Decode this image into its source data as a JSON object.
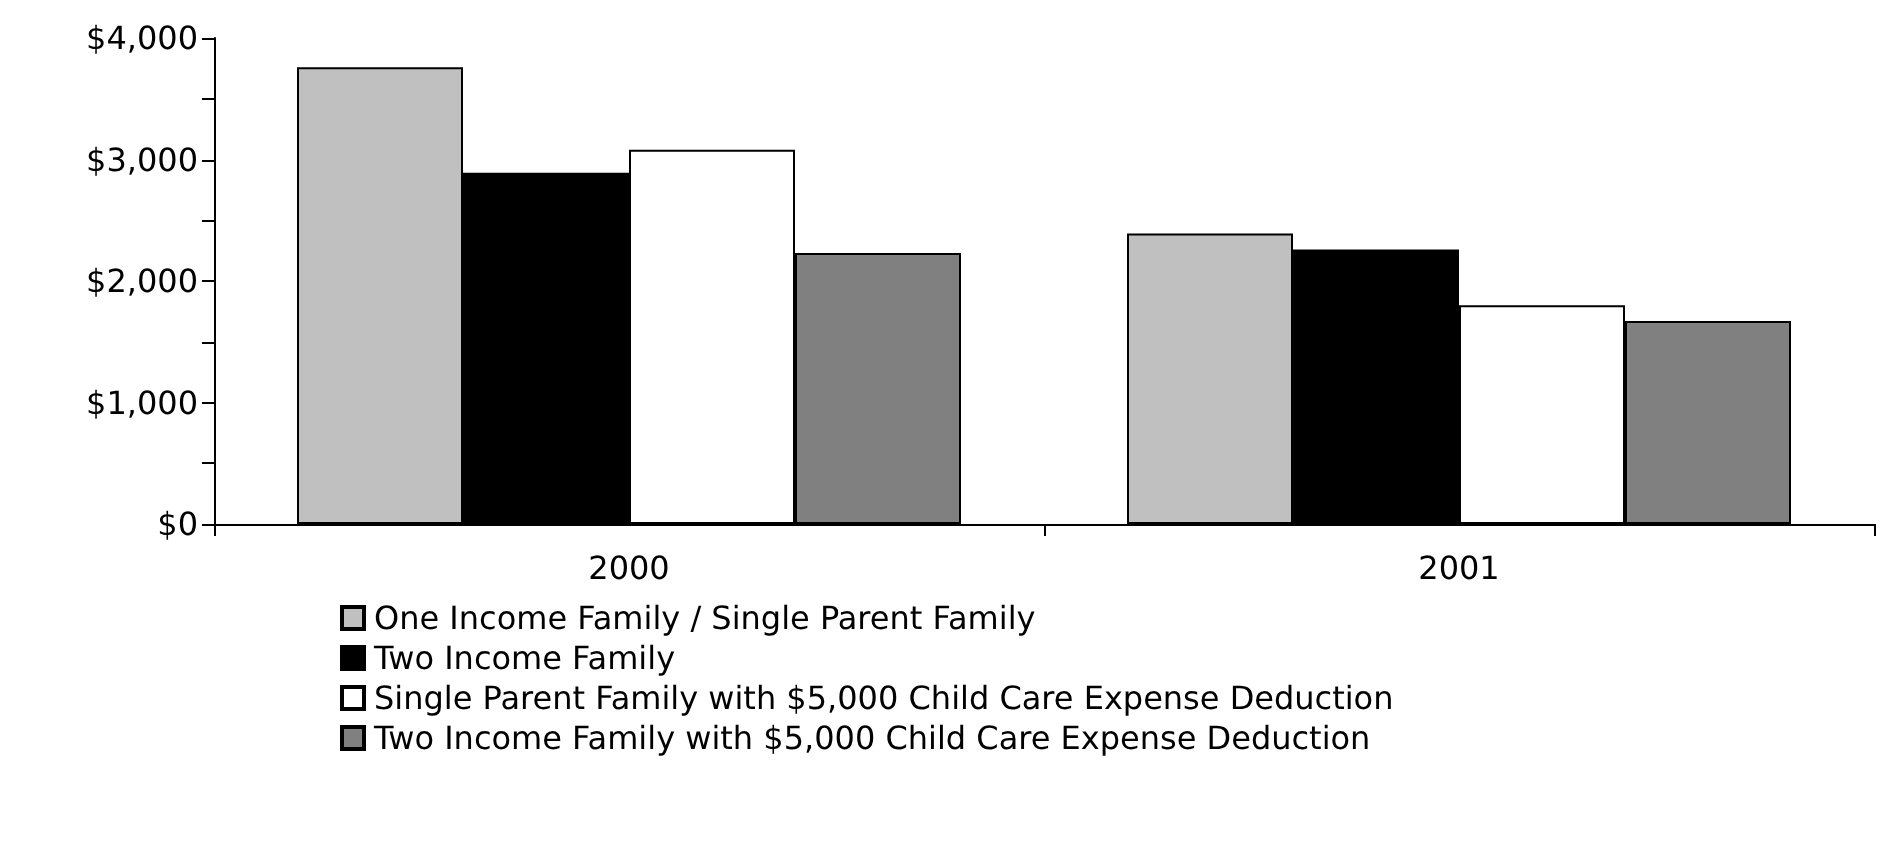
{
  "chart_data": {
    "type": "bar",
    "categories": [
      "2000",
      "2001"
    ],
    "series": [
      {
        "name": "One Income Family / Single Parent Family",
        "color": "#c0c0c0",
        "values": [
          3760,
          2390
        ]
      },
      {
        "name": "Two Income Family",
        "color": "#000000",
        "values": [
          2890,
          2260
        ]
      },
      {
        "name": "Single Parent Family with $5,000 Child Care Expense Deduction",
        "color": "#ffffff",
        "values": [
          3080,
          1800
        ]
      },
      {
        "name": "Two Income Family with $5,000 Child Care Expense Deduction",
        "color": "#808080",
        "values": [
          2230,
          1670
        ]
      }
    ],
    "ylim": [
      0,
      4000
    ],
    "yticks": [
      {
        "value": 0,
        "label": "$0"
      },
      {
        "value": 500,
        "label": null
      },
      {
        "value": 1000,
        "label": "$1,000"
      },
      {
        "value": 1500,
        "label": null
      },
      {
        "value": 2000,
        "label": "$2,000"
      },
      {
        "value": 2500,
        "label": null
      },
      {
        "value": 3000,
        "label": "$3,000"
      },
      {
        "value": 3500,
        "label": null
      },
      {
        "value": 4000,
        "label": "$4,000"
      }
    ],
    "grid": false,
    "legend": "bottom"
  }
}
